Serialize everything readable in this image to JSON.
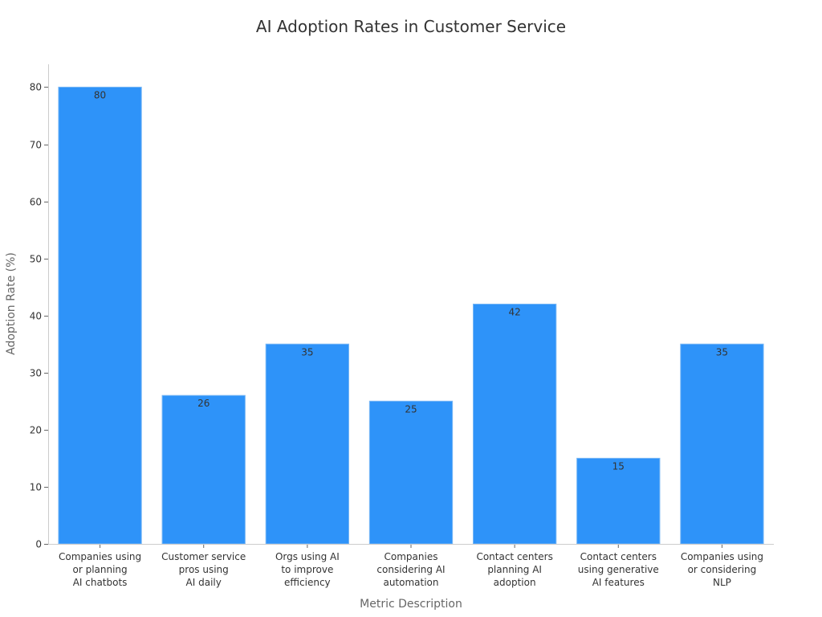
{
  "chart_data": {
    "type": "bar",
    "title": "AI Adoption Rates in Customer Service",
    "xlabel": "Metric Description",
    "ylabel": "Adoption Rate (%)",
    "categories": [
      [
        "Companies using",
        "or planning",
        "AI chatbots"
      ],
      [
        "Customer service",
        "pros using",
        "AI daily"
      ],
      [
        "Orgs using AI",
        "to improve",
        "efficiency"
      ],
      [
        "Companies",
        "considering AI",
        "automation"
      ],
      [
        "Contact centers",
        "planning AI",
        "adoption"
      ],
      [
        "Contact centers",
        "using generative",
        "AI features"
      ],
      [
        "Companies using",
        "or considering",
        "NLP"
      ]
    ],
    "values": [
      80,
      26,
      35,
      25,
      42,
      15,
      35
    ],
    "ylim": [
      0,
      84
    ],
    "yticks": [
      0,
      10,
      20,
      30,
      40,
      50,
      60,
      70,
      80
    ],
    "grid": false,
    "legend": "none",
    "bar_color": "#2e93f9"
  }
}
